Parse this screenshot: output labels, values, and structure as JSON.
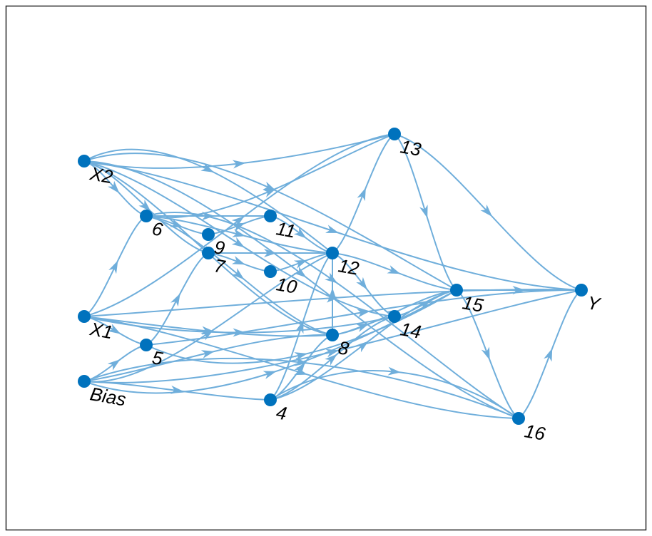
{
  "graph": {
    "node_color": "#0072BD",
    "edge_color": "#6FAEDB",
    "frame_color": "#262626",
    "nodes": [
      {
        "id": "X2",
        "label": "X2"
      },
      {
        "id": "X1",
        "label": "X1"
      },
      {
        "id": "Bias",
        "label": "Bias"
      },
      {
        "id": "4",
        "label": "4"
      },
      {
        "id": "5",
        "label": "5"
      },
      {
        "id": "6",
        "label": "6"
      },
      {
        "id": "7",
        "label": "7"
      },
      {
        "id": "8",
        "label": "8"
      },
      {
        "id": "9",
        "label": "9"
      },
      {
        "id": "10",
        "label": "10"
      },
      {
        "id": "11",
        "label": "11"
      },
      {
        "id": "12",
        "label": "12"
      },
      {
        "id": "13",
        "label": "13"
      },
      {
        "id": "14",
        "label": "14"
      },
      {
        "id": "15",
        "label": "15"
      },
      {
        "id": "16",
        "label": "16"
      },
      {
        "id": "Y",
        "label": "Y"
      }
    ],
    "edges": [
      [
        "X2",
        "6"
      ],
      [
        "X2",
        "7"
      ],
      [
        "X2",
        "8"
      ],
      [
        "X2",
        "12"
      ],
      [
        "X2",
        "13"
      ],
      [
        "X2",
        "14"
      ],
      [
        "X2",
        "15"
      ],
      [
        "X2",
        "16"
      ],
      [
        "X2",
        "Y"
      ],
      [
        "X1",
        "5"
      ],
      [
        "X1",
        "6"
      ],
      [
        "X1",
        "8"
      ],
      [
        "X1",
        "13"
      ],
      [
        "X1",
        "14"
      ],
      [
        "X1",
        "16"
      ],
      [
        "X1",
        "Y"
      ],
      [
        "Bias",
        "4"
      ],
      [
        "Bias",
        "5"
      ],
      [
        "Bias",
        "8"
      ],
      [
        "Bias",
        "12"
      ],
      [
        "Bias",
        "15"
      ],
      [
        "Bias",
        "16"
      ],
      [
        "Bias",
        "Y"
      ],
      [
        "4",
        "8"
      ],
      [
        "4",
        "12"
      ],
      [
        "4",
        "14"
      ],
      [
        "4",
        "15"
      ],
      [
        "4",
        "16"
      ],
      [
        "5",
        "7"
      ],
      [
        "5",
        "15"
      ],
      [
        "5",
        "Y"
      ],
      [
        "6",
        "9"
      ],
      [
        "6",
        "11"
      ],
      [
        "6",
        "12"
      ],
      [
        "6",
        "13"
      ],
      [
        "6",
        "8"
      ],
      [
        "6",
        "16"
      ],
      [
        "7",
        "10"
      ],
      [
        "7",
        "12"
      ],
      [
        "8",
        "12"
      ],
      [
        "8",
        "14"
      ],
      [
        "8",
        "15"
      ],
      [
        "9",
        "11"
      ],
      [
        "10",
        "12"
      ],
      [
        "11",
        "12"
      ],
      [
        "12",
        "13"
      ],
      [
        "12",
        "14"
      ],
      [
        "12",
        "15"
      ],
      [
        "13",
        "15"
      ],
      [
        "13",
        "Y"
      ],
      [
        "14",
        "15"
      ],
      [
        "15",
        "16"
      ],
      [
        "15",
        "Y"
      ],
      [
        "16",
        "Y"
      ]
    ]
  }
}
